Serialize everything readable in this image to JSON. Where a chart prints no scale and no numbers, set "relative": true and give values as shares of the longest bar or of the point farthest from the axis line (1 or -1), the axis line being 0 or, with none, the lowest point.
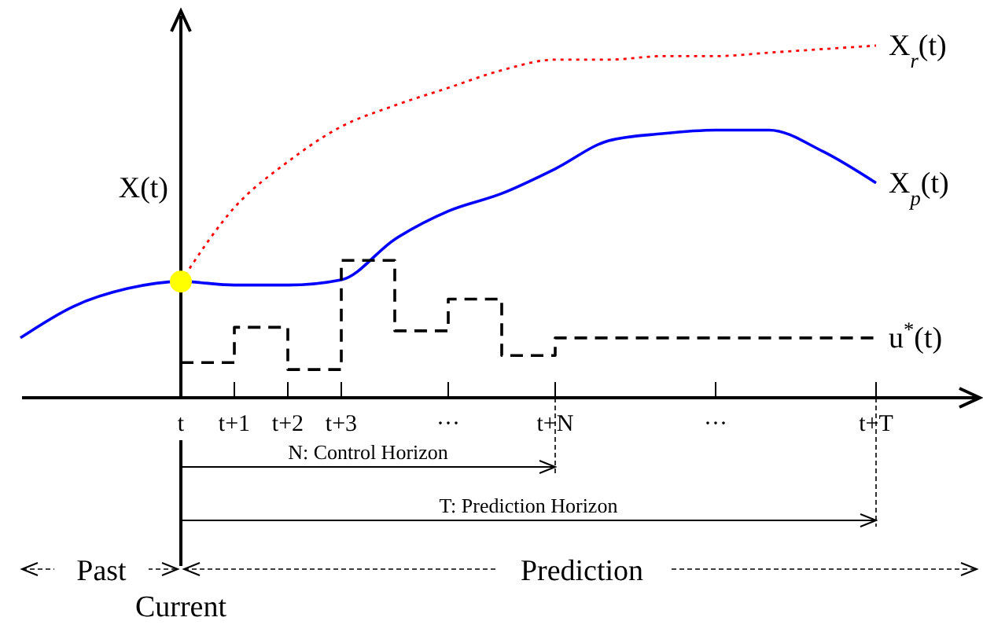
{
  "chart_data": {
    "type": "line",
    "relative": true,
    "ylabel": "X(t)",
    "categories": [
      null,
      null,
      null,
      "t",
      "t+1",
      "t+2",
      "t+3",
      null,
      "···",
      null,
      "t+N",
      null,
      null,
      "···",
      null,
      null,
      "t+T"
    ],
    "series": [
      {
        "name": "X$_{r}$(t)",
        "color": "#ff0000",
        "line_style": "dotted",
        "values": [
          null,
          null,
          null,
          0.33,
          0.54,
          0.67,
          0.77,
          0.83,
          0.88,
          0.93,
          0.96,
          0.96,
          0.97,
          0.97,
          0.98,
          0.99,
          1.0
        ]
      },
      {
        "name": "X$_{p}$(t)",
        "color": "#0000ff",
        "line_style": "solid",
        "values": [
          0.17,
          0.26,
          0.31,
          0.33,
          0.32,
          0.32,
          0.335,
          0.45,
          0.53,
          0.58,
          0.65,
          0.73,
          0.75,
          0.76,
          0.76,
          0.7,
          0.61
        ]
      },
      {
        "name": "u$^{*}$(t)",
        "type": "step",
        "color": "#000000",
        "line_style": "dashed",
        "values": [
          null,
          null,
          null,
          0.1,
          0.2,
          0.08,
          0.39,
          0.19,
          0.28,
          0.12,
          0.17,
          0.17,
          0.17,
          0.17,
          0.17,
          0.17,
          0.17
        ]
      },
      {
        "type": "scatter",
        "color": "#ffff00",
        "marker": "circle",
        "values": [
          null,
          null,
          null,
          0.33,
          null,
          null,
          null,
          null,
          null,
          null,
          null,
          null,
          null,
          null,
          null,
          null,
          null
        ]
      }
    ],
    "annotations": [
      "N: Control Horizon",
      "T: Prediction Horizon",
      "Past",
      "Prediction",
      "Current"
    ],
    "legend": false
  }
}
